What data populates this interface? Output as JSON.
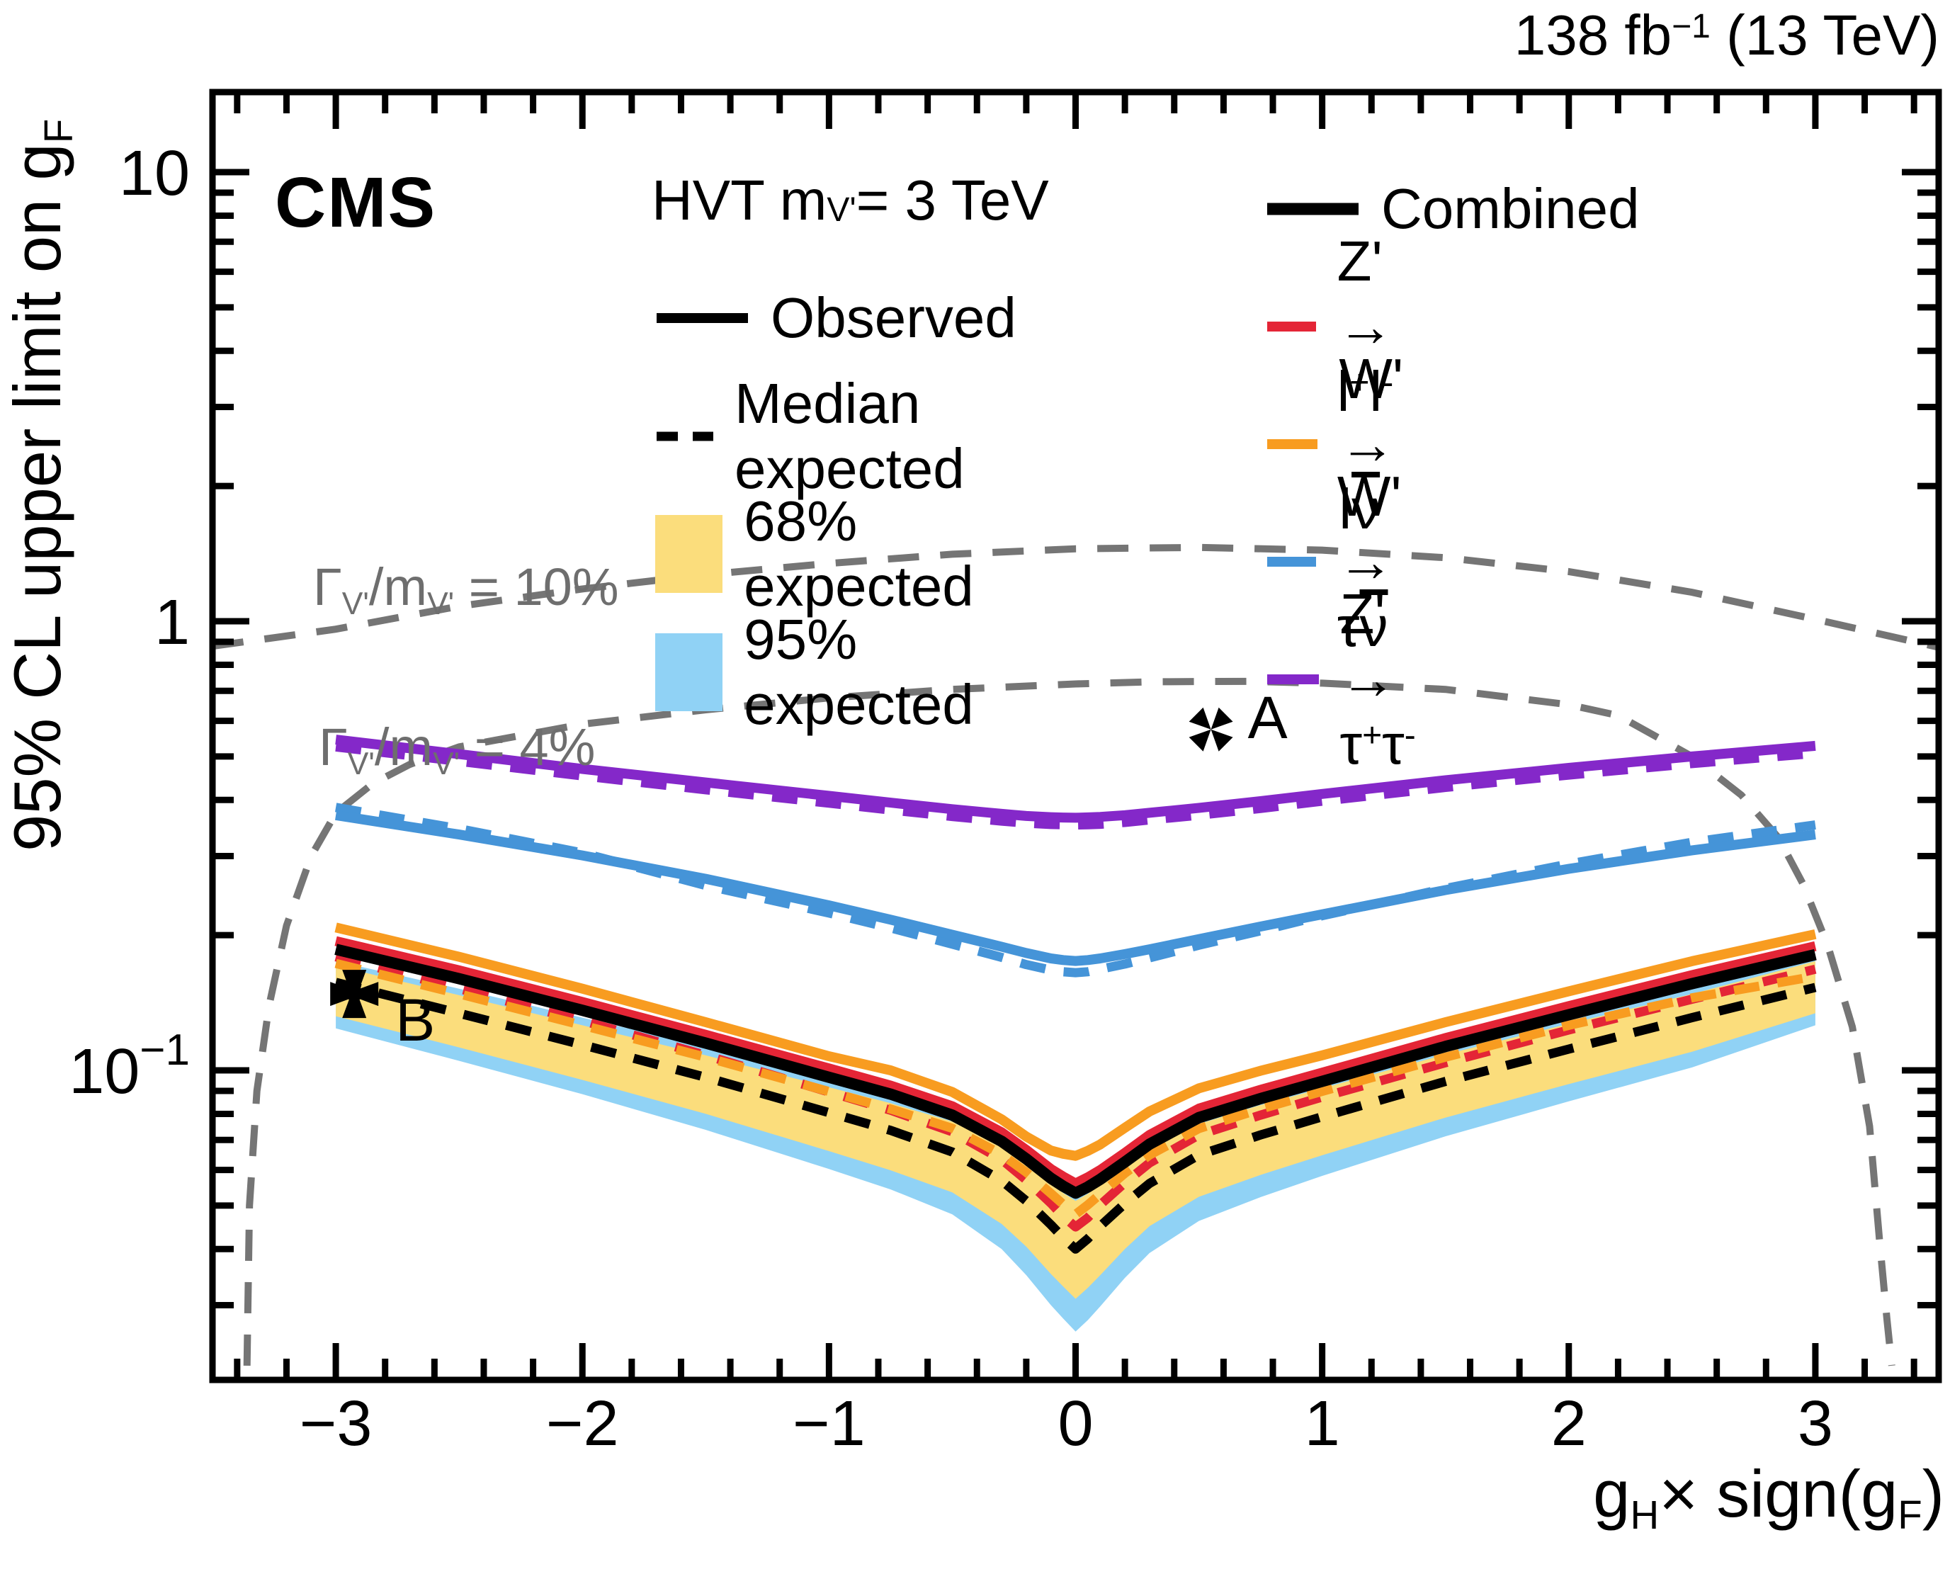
{
  "header": {
    "experiment": "CMS",
    "lumi_segments": [
      {
        "t": "138 fb"
      },
      {
        "sup": "−1"
      },
      {
        "t": " (13 TeV)"
      }
    ]
  },
  "axes": {
    "x": {
      "title_segments": [
        {
          "t": "g"
        },
        {
          "sub": "H"
        },
        {
          "t": "× sign(g"
        },
        {
          "sub": "F"
        },
        {
          "t": ")"
        }
      ],
      "tick_values": [
        -3,
        -2,
        -1,
        0,
        1,
        2,
        3
      ],
      "tick_labels": [
        "−3",
        "−2",
        "−1",
        "0",
        "1",
        "2",
        "3"
      ],
      "minor_step": 0.2,
      "min": -3.5,
      "max": 3.5
    },
    "y": {
      "title_segments": [
        {
          "t": "95% CL upper limit on g"
        },
        {
          "sub": "F"
        }
      ],
      "scale": "log",
      "tick_labels": [
        {
          "value": 10,
          "segments": [
            {
              "t": "10"
            }
          ]
        },
        {
          "value": 1,
          "segments": [
            {
              "t": "1"
            }
          ]
        },
        {
          "value": 0.1,
          "segments": [
            {
              "t": "10"
            },
            {
              "sup": "−1"
            }
          ]
        }
      ],
      "min": 0.0205,
      "max": 15.1
    }
  },
  "legend_left": {
    "title_segments": [
      {
        "t": "HVT m"
      },
      {
        "sub": "V'"
      },
      {
        "t": " = 3 TeV"
      }
    ],
    "items": [
      {
        "key": "observed",
        "label": "Observed",
        "sample": "solid-line",
        "color": "#000000"
      },
      {
        "key": "median-expected",
        "label": "Median expected",
        "sample": "dashed-line",
        "color": "#000000"
      },
      {
        "key": "expected-68",
        "label": "68% expected",
        "sample": "box",
        "color": "#fbdd7c"
      },
      {
        "key": "expected-95",
        "label": "95% expected",
        "sample": "box",
        "color": "#90d2f5"
      }
    ]
  },
  "legend_right": {
    "items": [
      {
        "key": "combined",
        "segments": [
          {
            "t": "Combined"
          }
        ],
        "color": "#000000"
      },
      {
        "key": "zprime-ll",
        "segments": [
          {
            "t": "Z' → l"
          },
          {
            "sup": "+"
          },
          {
            "t": "l"
          },
          {
            "sup": "-"
          }
        ],
        "color": "#e42536"
      },
      {
        "key": "wprime-lnu",
        "segments": [
          {
            "t": "W' → l"
          },
          {
            "bar": "ν"
          }
        ],
        "color": "#f89c20"
      },
      {
        "key": "wprime-taunu",
        "segments": [
          {
            "t": "W' → τ"
          },
          {
            "bar": "ν"
          }
        ],
        "color": "#4594d8"
      },
      {
        "key": "zprime-tautau",
        "segments": [
          {
            "t": "Z' → τ"
          },
          {
            "sup": "+"
          },
          {
            "t": "τ"
          },
          {
            "sup": "-"
          }
        ],
        "color": "#8428c9"
      }
    ]
  },
  "contour_labels": {
    "pct10_segments": [
      {
        "t": "Γ"
      },
      {
        "sub": "V'"
      },
      {
        "t": "/m"
      },
      {
        "sub": "V'"
      },
      {
        "t": " = 10%"
      }
    ],
    "pct4_segments": [
      {
        "t": "Γ"
      },
      {
        "sub": "V'"
      },
      {
        "t": "/m"
      },
      {
        "sub": "V'"
      },
      {
        "t": " = 4%"
      }
    ]
  },
  "chart_data": {
    "type": "line",
    "yscale": "log",
    "xlim": [
      -3.5,
      3.5
    ],
    "ylim": [
      0.0205,
      15.1
    ],
    "x": [
      -3,
      -2.5,
      -2,
      -1.5,
      -1,
      -0.75,
      -0.5,
      -0.3,
      -0.2,
      -0.1,
      -0.05,
      0,
      0.05,
      0.1,
      0.2,
      0.3,
      0.5,
      0.75,
      1,
      1.5,
      2,
      2.5,
      3
    ],
    "bands": [
      {
        "name": "expected-95",
        "color": "#90d2f5",
        "top": [
          0.175,
          0.152,
          0.131,
          0.113,
          0.0967,
          0.0895,
          0.0818,
          0.0722,
          0.0662,
          0.0604,
          0.058,
          0.0558,
          0.0578,
          0.0602,
          0.066,
          0.0717,
          0.0812,
          0.089,
          0.0968,
          0.115,
          0.134,
          0.156,
          0.181
        ],
        "bottom": [
          0.124,
          0.105,
          0.0885,
          0.0737,
          0.0603,
          0.0543,
          0.0478,
          0.04,
          0.035,
          0.03,
          0.028,
          0.0262,
          0.0278,
          0.0298,
          0.0345,
          0.0392,
          0.0462,
          0.0522,
          0.0582,
          0.0713,
          0.0853,
          0.1015,
          0.126
        ]
      },
      {
        "name": "expected-68",
        "color": "#fbdd7c",
        "top": [
          0.171,
          0.147,
          0.126,
          0.108,
          0.0917,
          0.0845,
          0.0769,
          0.0675,
          0.0615,
          0.0557,
          0.0533,
          0.0512,
          0.0531,
          0.0556,
          0.0612,
          0.0668,
          0.076,
          0.0837,
          0.0912,
          0.1085,
          0.127,
          0.148,
          0.175
        ],
        "bottom": [
          0.132,
          0.1125,
          0.0952,
          0.08,
          0.0661,
          0.0599,
          0.0535,
          0.0455,
          0.0405,
          0.0352,
          0.033,
          0.031,
          0.0328,
          0.035,
          0.04,
          0.045,
          0.0523,
          0.0585,
          0.0647,
          0.0785,
          0.0932,
          0.11,
          0.134
        ]
      }
    ],
    "series": [
      {
        "name": "combined-expected",
        "color": "#000000",
        "style": "dashed",
        "width": 13,
        "values": [
          0.157,
          0.134,
          0.114,
          0.0965,
          0.0805,
          0.0735,
          0.0658,
          0.0568,
          0.0512,
          0.0453,
          0.0424,
          0.04,
          0.0422,
          0.045,
          0.0505,
          0.056,
          0.0648,
          0.0718,
          0.0788,
          0.0945,
          0.1115,
          0.131,
          0.153
        ]
      },
      {
        "name": "zprime-ll-expected",
        "color": "#e42536",
        "style": "dashed",
        "width": 13,
        "values": [
          0.179,
          0.152,
          0.129,
          0.108,
          0.0895,
          0.0815,
          0.073,
          0.0633,
          0.057,
          0.0506,
          0.0473,
          0.0448,
          0.047,
          0.0502,
          0.0562,
          0.0622,
          0.0718,
          0.0795,
          0.0872,
          0.104,
          0.123,
          0.144,
          0.168
        ]
      },
      {
        "name": "wprime-lnu-expected",
        "color": "#f89c20",
        "style": "dashed",
        "width": 13,
        "values": [
          0.173,
          0.148,
          0.126,
          0.107,
          0.0897,
          0.082,
          0.0743,
          0.065,
          0.0593,
          0.0532,
          0.0503,
          0.0478,
          0.0502,
          0.053,
          0.059,
          0.0648,
          0.0742,
          0.082,
          0.0898,
          0.107,
          0.126,
          0.145,
          0.162
        ]
      },
      {
        "name": "wprime-taunu-expected",
        "color": "#4594d8",
        "style": "dashed",
        "width": 13,
        "values": [
          0.385,
          0.345,
          0.305,
          0.258,
          0.224,
          0.2075,
          0.191,
          0.1785,
          0.172,
          0.1672,
          0.1658,
          0.165,
          0.1658,
          0.168,
          0.1725,
          0.178,
          0.19,
          0.2045,
          0.221,
          0.254,
          0.288,
          0.322,
          0.352
        ]
      },
      {
        "name": "zprime-tautau-expected",
        "color": "#8428c9",
        "style": "dashed",
        "width": 13,
        "values": [
          0.525,
          0.4875,
          0.4525,
          0.4215,
          0.3935,
          0.38,
          0.3675,
          0.359,
          0.3552,
          0.3528,
          0.3522,
          0.3518,
          0.3522,
          0.3532,
          0.3565,
          0.361,
          0.37,
          0.383,
          0.3975,
          0.4265,
          0.4545,
          0.482,
          0.508
        ]
      },
      {
        "name": "wprime-taunu-observed",
        "color": "#4594d8",
        "style": "solid",
        "width": 14,
        "values": [
          0.37,
          0.335,
          0.301,
          0.267,
          0.233,
          0.2165,
          0.2005,
          0.1885,
          0.1825,
          0.1775,
          0.176,
          0.1752,
          0.176,
          0.1775,
          0.1815,
          0.186,
          0.196,
          0.209,
          0.2225,
          0.252,
          0.281,
          0.309,
          0.335
        ]
      },
      {
        "name": "zprime-tautau-observed",
        "color": "#8428c9",
        "style": "solid",
        "width": 14,
        "values": [
          0.545,
          0.506,
          0.469,
          0.4375,
          0.4085,
          0.3945,
          0.3815,
          0.3725,
          0.3685,
          0.3662,
          0.3656,
          0.3652,
          0.3658,
          0.3668,
          0.37,
          0.3745,
          0.384,
          0.3975,
          0.4125,
          0.4425,
          0.4715,
          0.5,
          0.528
        ]
      },
      {
        "name": "wprime-lnu-observed",
        "color": "#f89c20",
        "style": "solid",
        "width": 14,
        "values": [
          0.208,
          0.179,
          0.152,
          0.128,
          0.1075,
          0.1,
          0.0895,
          0.0778,
          0.0712,
          0.0663,
          0.0652,
          0.0645,
          0.0662,
          0.0684,
          0.0745,
          0.081,
          0.0912,
          0.0998,
          0.108,
          0.128,
          0.15,
          0.175,
          0.201
        ]
      },
      {
        "name": "zprime-ll-observed",
        "color": "#e42536",
        "style": "solid",
        "width": 14,
        "values": [
          0.194,
          0.167,
          0.142,
          0.12,
          0.101,
          0.0925,
          0.0832,
          0.0728,
          0.0665,
          0.0603,
          0.058,
          0.056,
          0.0578,
          0.06,
          0.0655,
          0.0718,
          0.0822,
          0.0905,
          0.0988,
          0.118,
          0.139,
          0.163,
          0.189
        ]
      },
      {
        "name": "combined-observed",
        "color": "#000000",
        "style": "solid",
        "width": 16,
        "values": [
          0.186,
          0.16,
          0.136,
          0.115,
          0.0965,
          0.0885,
          0.0795,
          0.0695,
          0.0635,
          0.0575,
          0.0552,
          0.0533,
          0.055,
          0.0572,
          0.0625,
          0.0685,
          0.0785,
          0.0865,
          0.0945,
          0.113,
          0.133,
          0.156,
          0.181
        ]
      }
    ],
    "contours": [
      {
        "name": "width-10pct",
        "label": "GammaV/mV = 10%",
        "color": "#757575",
        "x": [
          -3.5,
          -3,
          -2.5,
          -2,
          -1.5,
          -1,
          -0.5,
          0,
          0.5,
          1,
          1.5,
          2,
          2.5,
          3,
          3.5
        ],
        "values": [
          0.88,
          0.96,
          1.08,
          1.18,
          1.27,
          1.345,
          1.41,
          1.45,
          1.46,
          1.44,
          1.385,
          1.29,
          1.16,
          1.01,
          0.875
        ]
      },
      {
        "name": "width-4pct",
        "label": "GammaV/mV = 4%",
        "color": "#757575",
        "x": [
          -3.36,
          -3.35,
          -3.32,
          -3.27,
          -3.2,
          -3.1,
          -3.0,
          -2.85,
          -2.7,
          -2.5,
          -2.0,
          -1.5,
          -1.0,
          -0.5,
          0,
          0.3,
          0.7,
          1.0,
          1.5,
          2.0,
          2.2,
          2.5,
          2.7,
          2.85,
          2.95,
          3.05,
          3.15,
          3.22,
          3.26,
          3.29,
          3.31
        ],
        "values": [
          0.022,
          0.05,
          0.09,
          0.14,
          0.21,
          0.3,
          0.374,
          0.435,
          0.48,
          0.525,
          0.59,
          0.635,
          0.675,
          0.705,
          0.725,
          0.733,
          0.735,
          0.728,
          0.705,
          0.652,
          0.617,
          0.5,
          0.41,
          0.33,
          0.26,
          0.19,
          0.125,
          0.075,
          0.042,
          0.028,
          0.022
        ]
      }
    ],
    "benchmarks": [
      {
        "label": "A",
        "x": 0.549,
        "value": 0.574,
        "marker": "four-triangles"
      },
      {
        "label": "B",
        "x": -2.925,
        "value": 0.148,
        "marker": "cross-pattee"
      }
    ]
  }
}
